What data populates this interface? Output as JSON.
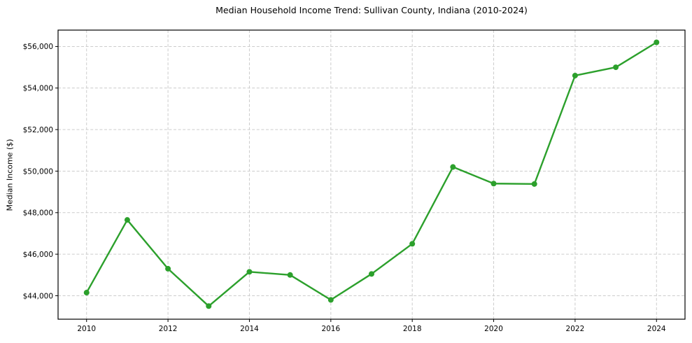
{
  "figure": {
    "title": "Median Household Income Trend: Sullivan County, Indiana (2010-2024)"
  },
  "chart_data": {
    "type": "line",
    "title": "Median Household Income Trend: Sullivan County, Indiana (2010-2024)",
    "xlabel": "",
    "ylabel": "Median Income ($)",
    "x": [
      2010,
      2011,
      2012,
      2013,
      2014,
      2015,
      2016,
      2017,
      2018,
      2019,
      2020,
      2021,
      2022,
      2023,
      2024
    ],
    "series": [
      {
        "name": "Median Household Income",
        "values": [
          44150,
          47650,
          45300,
          43500,
          45150,
          45000,
          43800,
          45050,
          46500,
          50200,
          49400,
          49380,
          54600,
          55000,
          56200
        ],
        "color": "#2ca02c",
        "marker": "circle"
      }
    ],
    "x_ticks": [
      2010,
      2012,
      2014,
      2016,
      2018,
      2020,
      2022,
      2024
    ],
    "x_tick_labels": [
      "2010",
      "2012",
      "2014",
      "2016",
      "2018",
      "2020",
      "2022",
      "2024"
    ],
    "y_ticks": [
      44000,
      46000,
      48000,
      50000,
      52000,
      54000,
      56000
    ],
    "y_tick_labels": [
      "$44,000",
      "$46,000",
      "$48,000",
      "$50,000",
      "$52,000",
      "$54,000",
      "$56,000"
    ],
    "xlim": [
      2009.3,
      2024.7
    ],
    "ylim": [
      42870,
      56790
    ],
    "grid": true,
    "grid_style": "dashed",
    "legend": "none",
    "colors": {
      "line": "#2ca02c",
      "grid": "#cccccc",
      "axis": "#000000",
      "text": "#000000",
      "background": "#ffffff"
    }
  }
}
